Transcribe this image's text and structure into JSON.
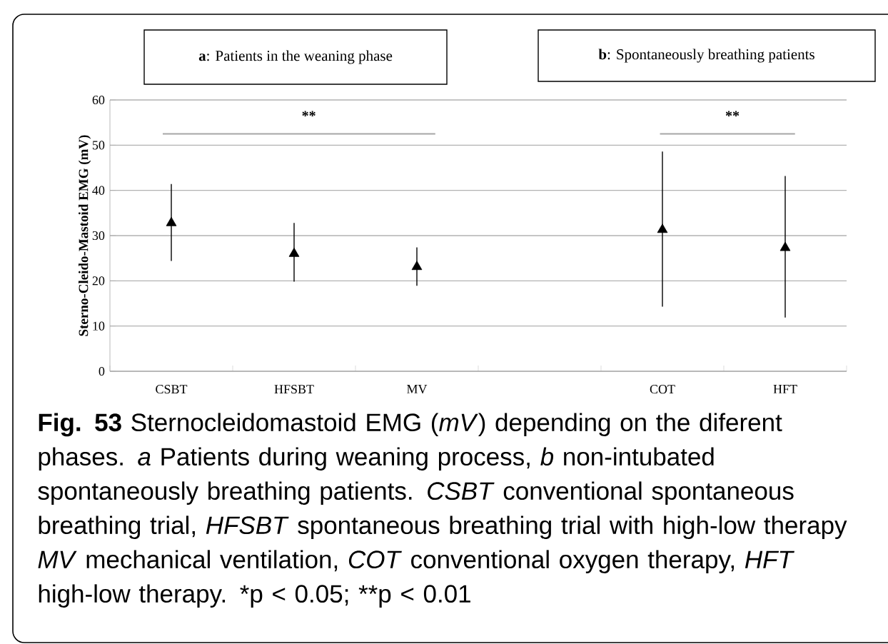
{
  "chart_data": {
    "type": "scatter",
    "ylabel": "Sterno-Cleido-Mastoid EMG (mV)",
    "categories": [
      "CSBT",
      "HFSBT",
      "MV",
      null,
      "COT",
      "HFT"
    ],
    "values": [
      32.8,
      26.0,
      23.1,
      null,
      31.3,
      27.3
    ],
    "errors": [
      [
        24.4,
        41.4
      ],
      [
        19.8,
        32.8
      ],
      [
        18.9,
        27.4
      ],
      null,
      [
        14.3,
        48.6
      ],
      [
        11.9,
        43.2
      ]
    ],
    "color": "#000000",
    "marker": "triangle",
    "grid": "y",
    "ylim": [
      0,
      60
    ],
    "yticks": [
      0,
      10,
      20,
      30,
      40,
      50,
      60
    ],
    "annotations": [
      "**a**: Patients in the weaning phase",
      "**b**: Spontaneously breathing patients",
      "**",
      "**",
      "**Fig. 53**  Sternocleidomastoid EMG (*mV*) depending on the diferent phases. *a* Patients during weaning process, *b* non-intubated spontaneously breathing patients. *CSBT* conventional spontaneous breathing trial, *HFSBT* spontaneous breathing trial with high-low therapy *MV* mechanical ventilation, *COT* conventional oxygen therapy, *HFT* high-low therapy. *p < 0.05; **p < 0.01"
    ]
  }
}
